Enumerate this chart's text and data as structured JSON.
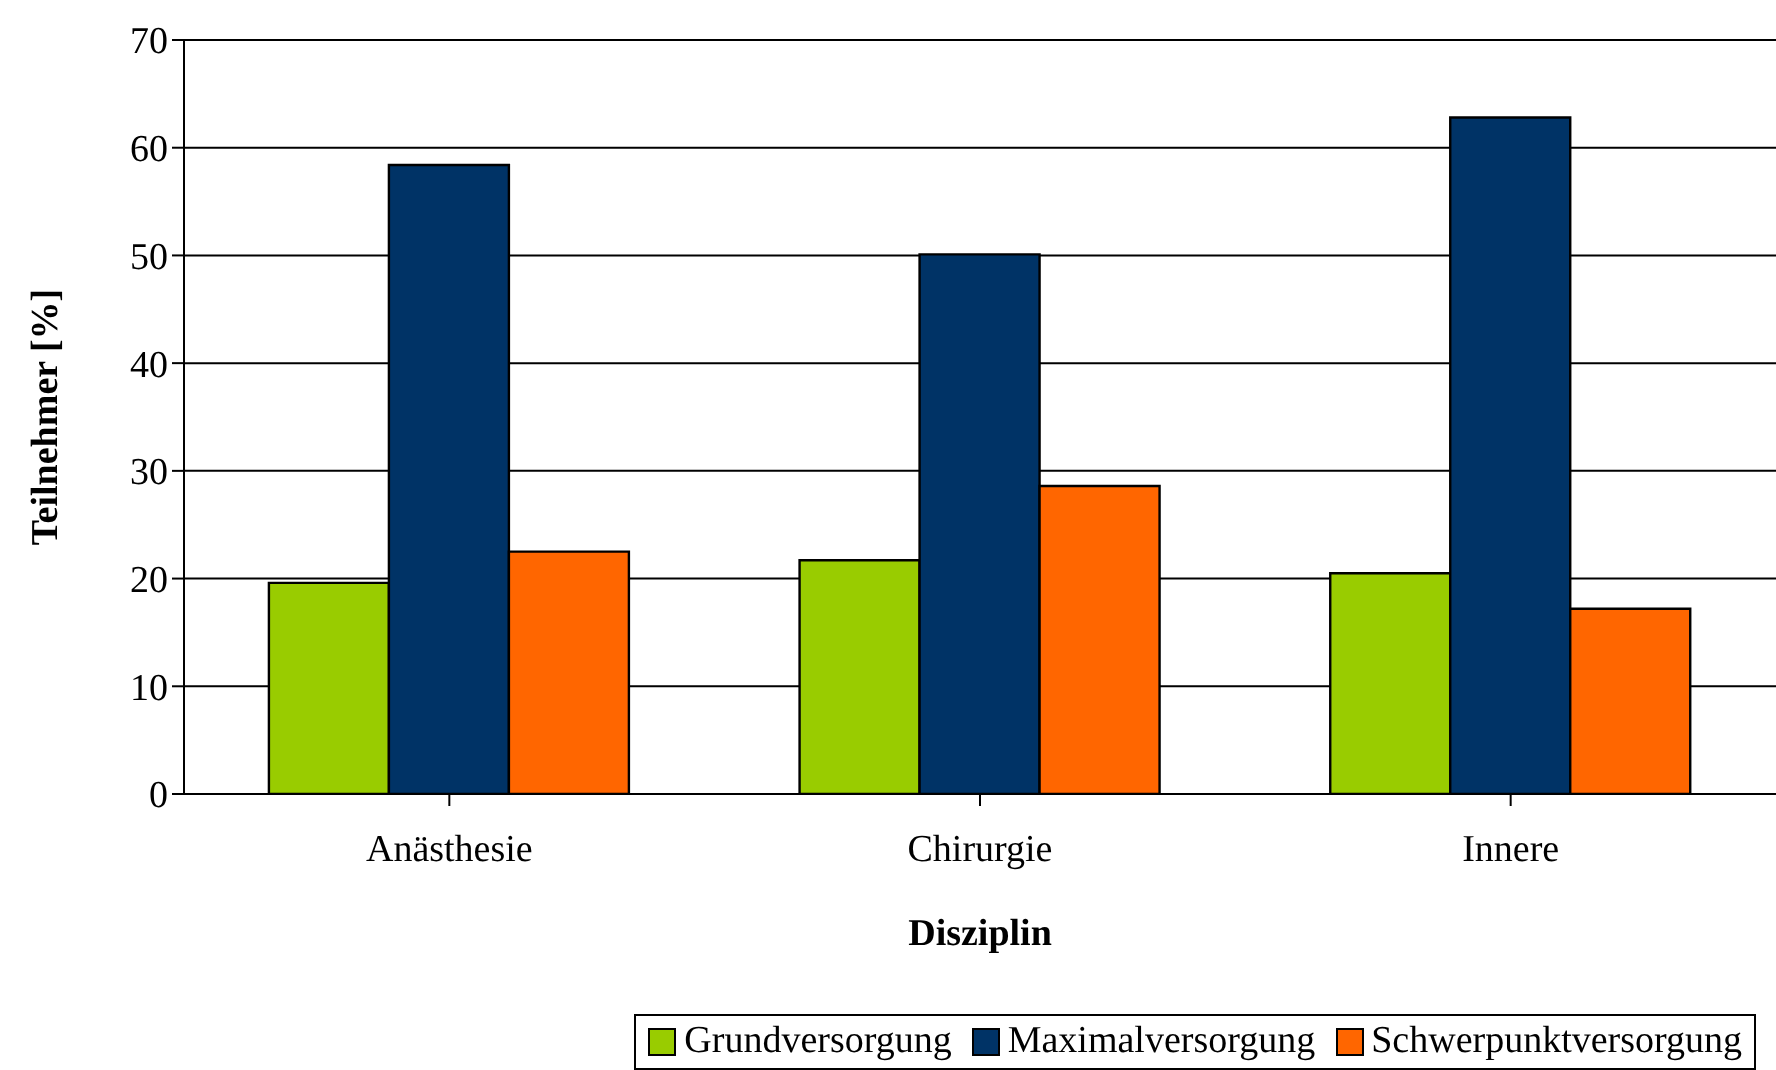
{
  "chart_data": {
    "type": "bar",
    "xlabel": "Disziplin",
    "ylabel": "Teilnehmer [%]",
    "categories": [
      "Anästhesie",
      "Chirurgie",
      "Innere"
    ],
    "series": [
      {
        "name": "Grundversorgung",
        "color": "#99cc00",
        "values": [
          19.6,
          21.7,
          20.5
        ]
      },
      {
        "name": "Maximalversorgung",
        "color": "#003366",
        "values": [
          58.4,
          50.1,
          62.8
        ]
      },
      {
        "name": "Schwerpunktversorgung",
        "color": "#ff6600",
        "values": [
          22.5,
          28.6,
          17.2
        ]
      }
    ],
    "ylim": [
      0,
      70
    ],
    "yticks": [
      0,
      10,
      20,
      30,
      40,
      50,
      60,
      70
    ],
    "grid": "y",
    "legend": "bottom"
  }
}
